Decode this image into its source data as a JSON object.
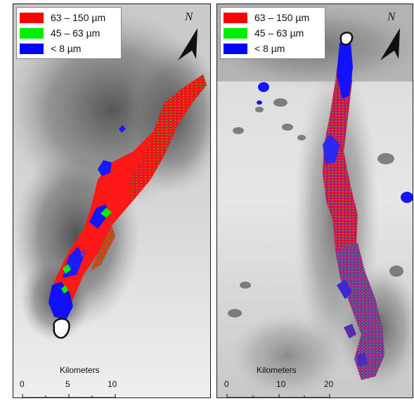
{
  "legend": {
    "items": [
      {
        "label": "63 – 150 µm",
        "color": "#ff0000"
      },
      {
        "label": "45 – 63 µm",
        "color": "#00ee00"
      },
      {
        "label": "< 8 µm",
        "color": "#0000ff"
      }
    ]
  },
  "north_label": "N",
  "left_panel": {
    "scale": {
      "title": "Kilometers",
      "ticks": [
        "0",
        "5",
        "10"
      ]
    }
  },
  "right_panel": {
    "scale": {
      "title": "Kilometers",
      "ticks": [
        "0",
        "10",
        "20"
      ]
    }
  },
  "colors": {
    "red": "#ff0000",
    "green": "#00ee00",
    "blue": "#0000ff",
    "purple": "#7a2fa0"
  }
}
